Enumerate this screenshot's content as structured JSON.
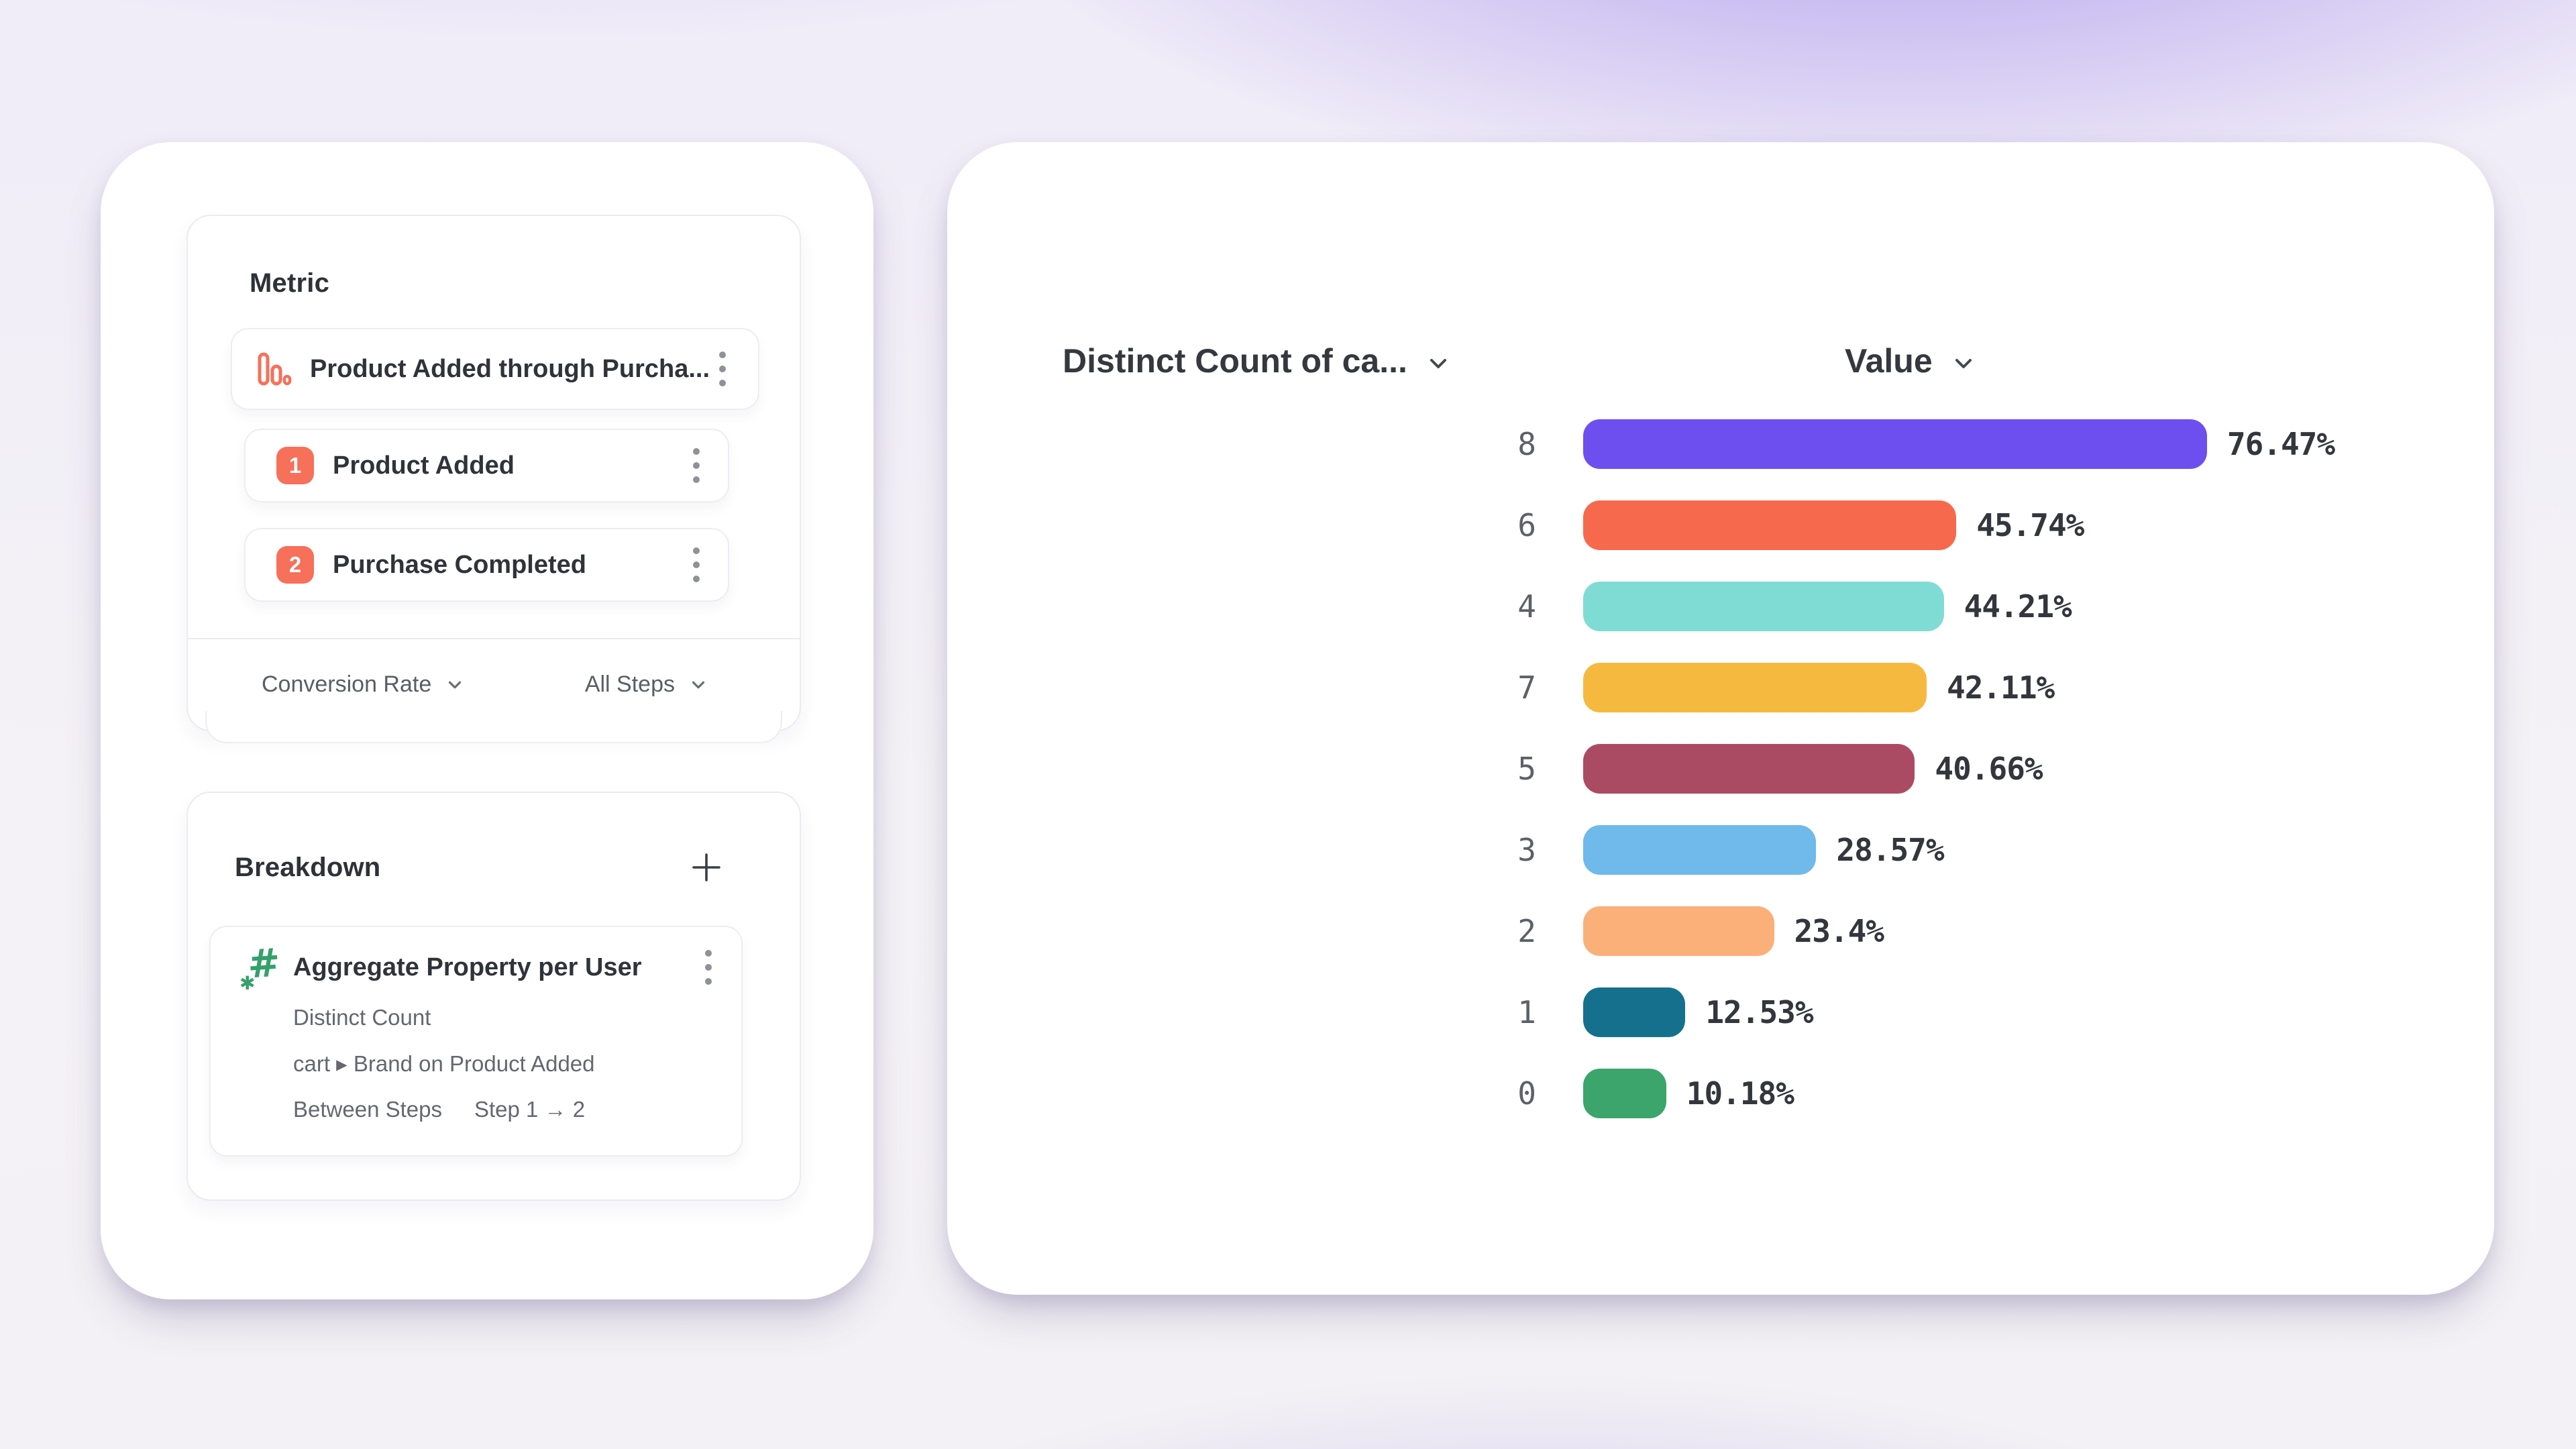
{
  "metric_panel": {
    "title": "Metric",
    "event": {
      "title": "Product Added through Purcha...",
      "icon": "funnel-chart-icon",
      "icon_color": "#F7705A"
    },
    "steps": [
      {
        "number": "1",
        "label": "Product Added"
      },
      {
        "number": "2",
        "label": "Purchase Completed"
      }
    ],
    "step_badge_color": "#F7705A",
    "footer": {
      "measure_dropdown": "Conversion Rate",
      "steps_dropdown": "All Steps"
    }
  },
  "breakdown_panel": {
    "title": "Breakdown",
    "item": {
      "title": "Aggregate Property per User",
      "icon": "hash-aggregate-icon",
      "icon_color": "#35A06B",
      "aggregation": "Distinct Count",
      "property": "cart ▸ Brand on Product Added",
      "between_label": "Between Steps",
      "step_range": "Step 1 → 2"
    }
  },
  "chart": {
    "category_header": "Distinct Count of ca...",
    "value_header": "Value"
  },
  "chart_data": {
    "type": "bar",
    "orientation": "horizontal",
    "title": "",
    "xlabel": "Value",
    "ylabel": "Distinct Count of ca...",
    "xlim": [
      0,
      100
    ],
    "grid": false,
    "legend": "none",
    "categories": [
      "8",
      "6",
      "4",
      "7",
      "5",
      "3",
      "2",
      "1",
      "0"
    ],
    "values": [
      76.47,
      45.74,
      44.21,
      42.11,
      40.66,
      28.57,
      23.4,
      12.53,
      10.18
    ],
    "value_labels": [
      "76.47%",
      "45.74%",
      "44.21%",
      "42.11%",
      "40.66%",
      "28.57%",
      "23.4%",
      "12.53%",
      "10.18%"
    ],
    "colors": [
      "#6C4FEE",
      "#F7694D",
      "#7FDCD4",
      "#F6B93F",
      "#AB4A63",
      "#6FB9EB",
      "#FBAF79",
      "#15708E",
      "#3BA56C"
    ]
  },
  "background": {
    "glow_color": "#8F6FE4",
    "base_color": "#F4F2F6"
  }
}
